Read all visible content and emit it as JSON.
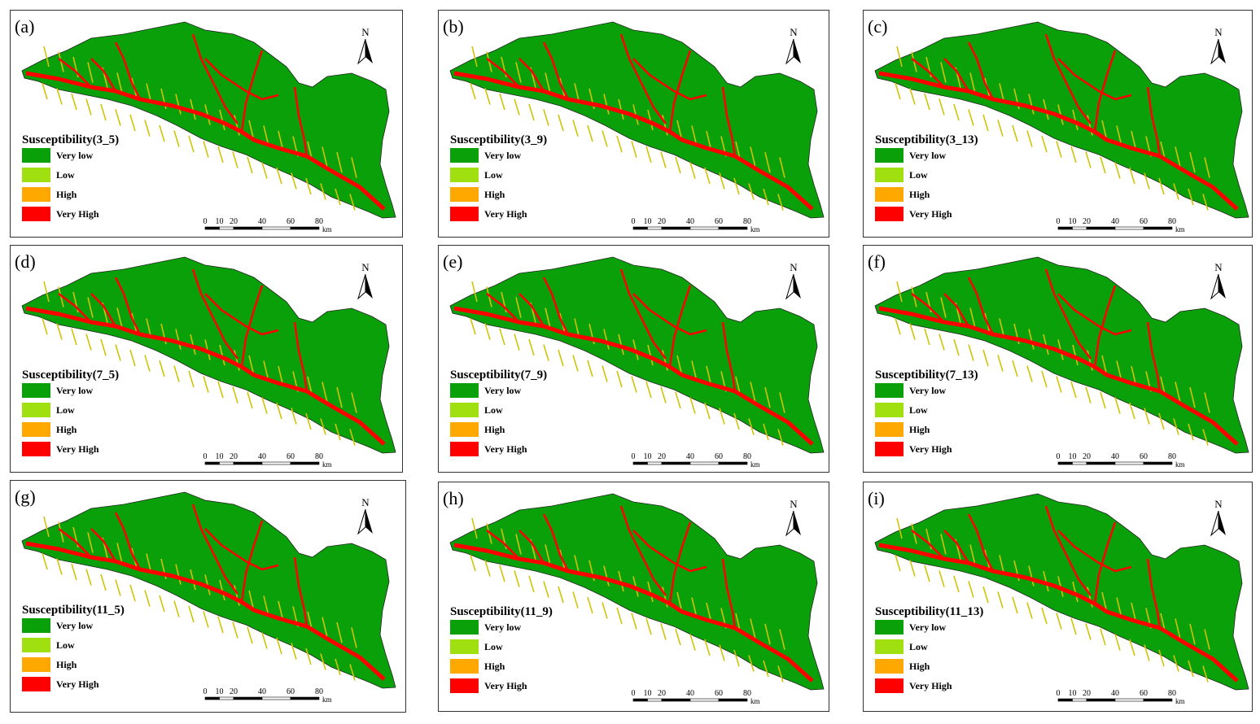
{
  "panels": [
    {
      "label": "(a)",
      "legend_title": "Susceptibility(3_5)"
    },
    {
      "label": "(b)",
      "legend_title": "Susceptibility(3_9)"
    },
    {
      "label": "(c)",
      "legend_title": "Susceptibility(3_13)"
    },
    {
      "label": "(d)",
      "legend_title": "Susceptibility(7_5)"
    },
    {
      "label": "(e)",
      "legend_title": "Susceptibility(7_9)"
    },
    {
      "label": "(f)",
      "legend_title": "Susceptibility(7_13)"
    },
    {
      "label": "(g)",
      "legend_title": "Susceptibility(11_5)"
    },
    {
      "label": "(h)",
      "legend_title": "Susceptibility(11_9)"
    },
    {
      "label": "(i)",
      "legend_title": "Susceptibility(11_13)"
    }
  ],
  "legend_items": [
    {
      "label": "Very low",
      "color": "#0aa00a"
    },
    {
      "label": "Low",
      "color": "#a0e010"
    },
    {
      "label": "High",
      "color": "#ffa800"
    },
    {
      "label": "Very High",
      "color": "#ff0000"
    }
  ],
  "north": "N",
  "scale": {
    "ticks": [
      0,
      10,
      20,
      40,
      60,
      80
    ],
    "unit": "km"
  }
}
